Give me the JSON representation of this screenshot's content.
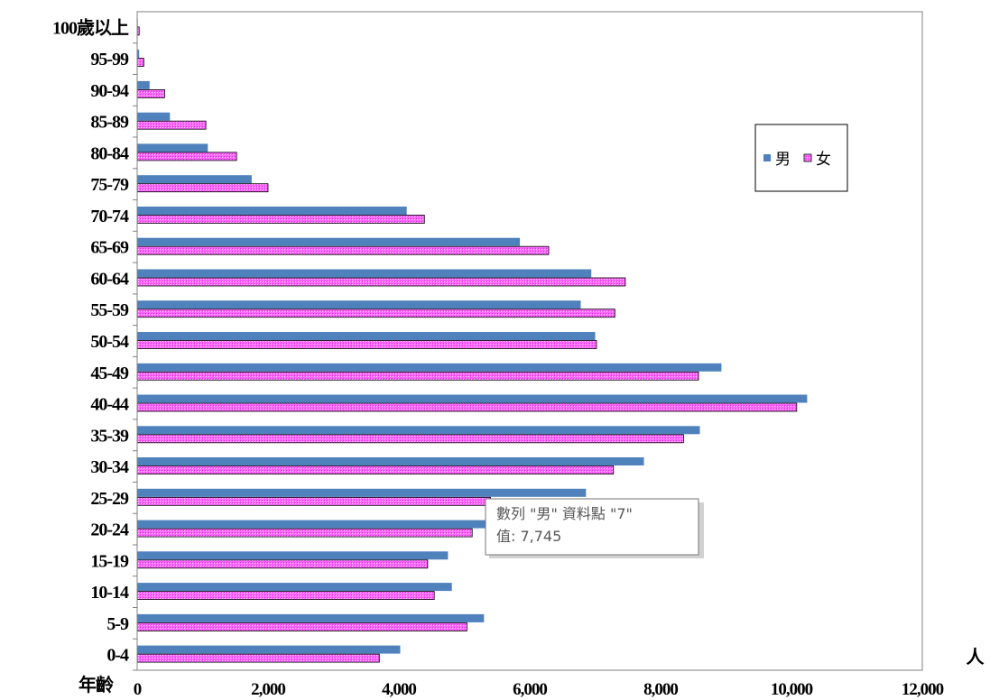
{
  "chart_data": {
    "type": "bar",
    "orientation": "horizontal",
    "categories": [
      "0-4",
      "5-9",
      "10-14",
      "15-19",
      "20-24",
      "25-29",
      "30-34",
      "35-39",
      "40-44",
      "45-49",
      "50-54",
      "55-59",
      "60-64",
      "65-69",
      "70-74",
      "75-79",
      "80-84",
      "85-89",
      "90-94",
      "95-99",
      "100歲以上"
    ],
    "series": [
      {
        "name": "男",
        "color": "#4f81bd",
        "values": [
          4020,
          5300,
          4810,
          4750,
          5400,
          6860,
          7745,
          8600,
          10240,
          8930,
          7000,
          6780,
          6940,
          5850,
          4120,
          1750,
          1080,
          500,
          190,
          30,
          10
        ]
      },
      {
        "name": "女",
        "color": "#ff66ff",
        "values": [
          3700,
          5040,
          4540,
          4440,
          5120,
          5400,
          7280,
          8350,
          10080,
          8580,
          7020,
          7300,
          7460,
          6290,
          4390,
          2000,
          1520,
          1050,
          420,
          100,
          30
        ]
      }
    ],
    "xlim": [
      0,
      12000
    ],
    "xticks": [
      "0",
      "2,000",
      "4,000",
      "6,000",
      "8,000",
      "10,000",
      "12,000"
    ],
    "xlabel": "人",
    "ylabel": "年齡",
    "legend": "right-upper",
    "grid": false,
    "tooltip": {
      "line1": "數列 \"男\" 資料點 \"7\"",
      "line2": "值: 7,745"
    }
  }
}
